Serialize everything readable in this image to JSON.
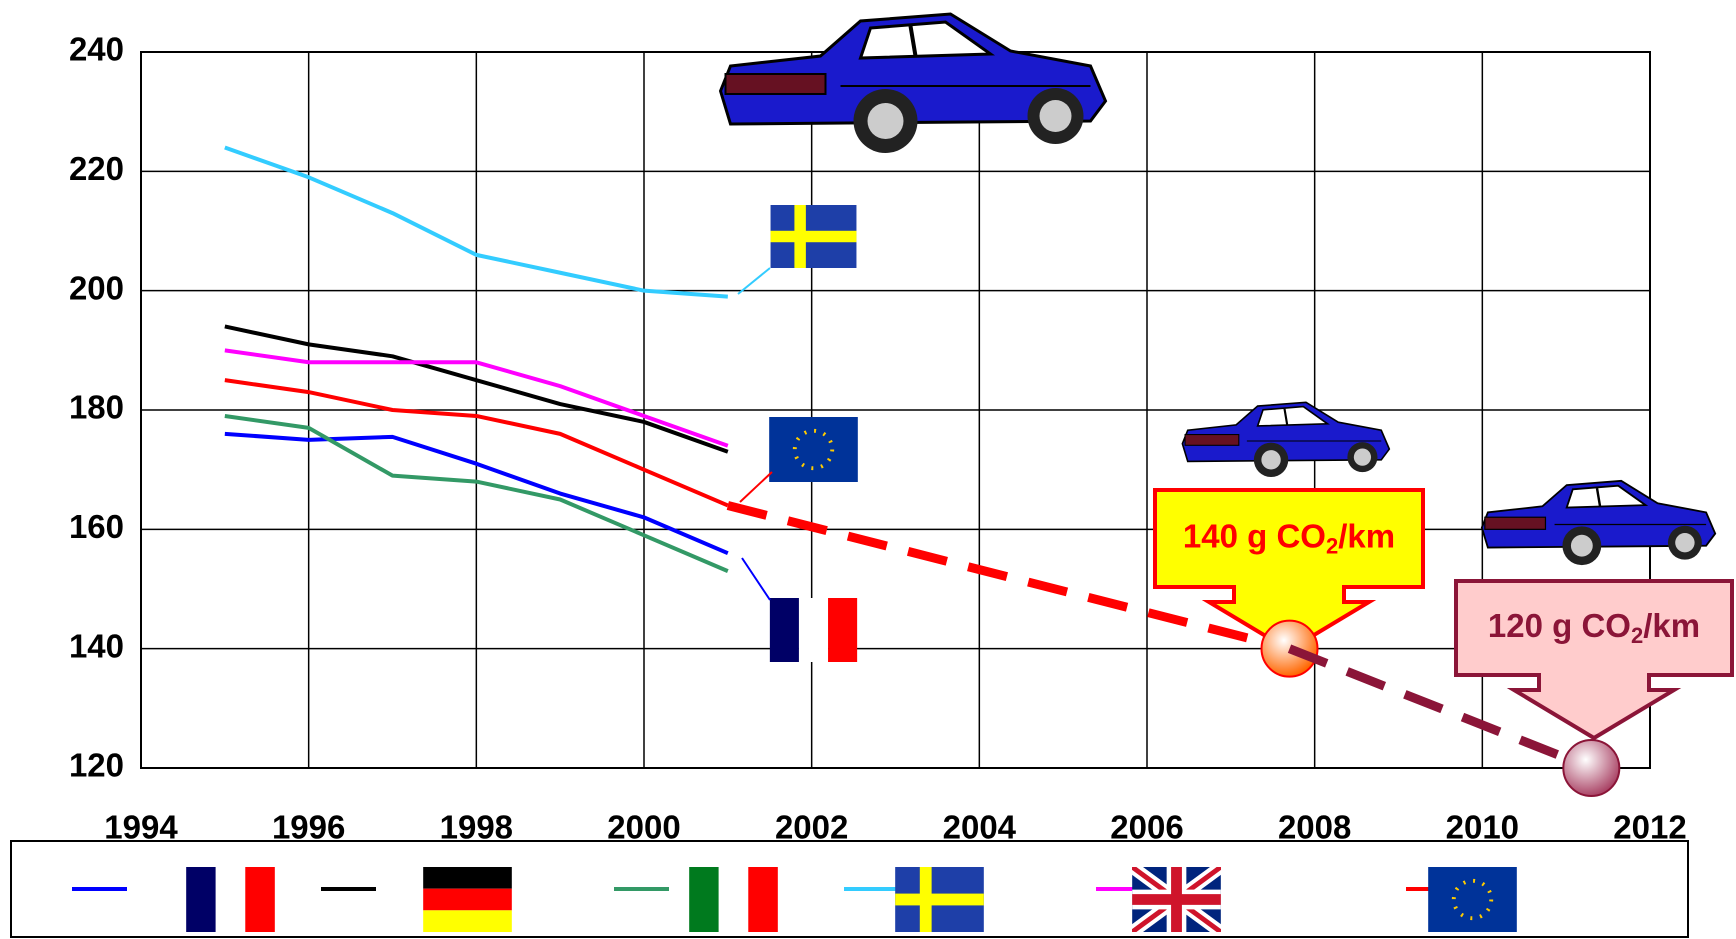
{
  "chart_data": {
    "type": "line",
    "x": [
      1995,
      1996,
      1997,
      1998,
      1999,
      2000,
      2001
    ],
    "series": [
      {
        "color": "#0000ff",
        "values": [
          176,
          175,
          175.5,
          171,
          166,
          162,
          156
        ]
      },
      {
        "color": "#000000",
        "values": [
          194,
          191,
          189,
          185,
          181,
          178,
          173
        ]
      },
      {
        "color": "#339966",
        "values": [
          179,
          177,
          169,
          168,
          165,
          159,
          153
        ]
      },
      {
        "color": "#33ccff",
        "values": [
          224,
          219,
          213,
          206,
          203,
          200,
          199
        ]
      },
      {
        "color": "#ff00ff",
        "values": [
          190,
          188,
          188,
          188,
          184,
          179,
          174
        ]
      },
      {
        "color": "#ff0000",
        "values": [
          185,
          183,
          180,
          179,
          176,
          170,
          164
        ]
      }
    ],
    "targets": [
      {
        "x": 2007.7,
        "value": 140,
        "color": "#ff0000",
        "text": [
          "140 g CO",
          "2",
          "/km"
        ]
      },
      {
        "x": 2011.3,
        "value": 120,
        "color": "#8b1538",
        "text": [
          "120 g CO",
          "2",
          "/km"
        ]
      }
    ],
    "xlim": [
      1994,
      2012
    ],
    "xticks": [
      1994,
      1996,
      1998,
      2000,
      2002,
      2004,
      2006,
      2008,
      2010,
      2012
    ],
    "ylim": [
      120,
      240
    ],
    "yticks": [
      120,
      140,
      160,
      180,
      200,
      220,
      240
    ],
    "grid": true
  }
}
